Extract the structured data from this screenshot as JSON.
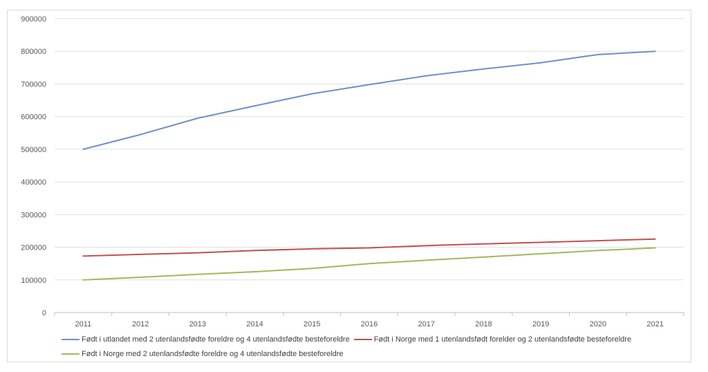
{
  "chart_data": {
    "type": "line",
    "title": "",
    "xlabel": "",
    "ylabel": "",
    "x": [
      "2011",
      "2012",
      "2013",
      "2014",
      "2015",
      "2016",
      "2017",
      "2018",
      "2019",
      "2020",
      "2021"
    ],
    "ylim": [
      0,
      900000
    ],
    "yticks": [
      "0",
      "100000",
      "200000",
      "300000",
      "400000",
      "500000",
      "600000",
      "700000",
      "800000",
      "900000"
    ],
    "grid": true,
    "legend_position": "bottom",
    "series": [
      {
        "name": "Født i utlandet med 2 utenlandsfødte foreldre og 4 utenlandsfødte besteforeldre",
        "color": "#6f8fc6",
        "values": [
          500000,
          545000,
          595000,
          633000,
          670000,
          698000,
          725000,
          746000,
          765000,
          790000,
          800000
        ]
      },
      {
        "name": "Født i Norge med 1 utenlandsfødt forelder og 2 utenlandsfødte besteforeldre",
        "color": "#c0504d",
        "values": [
          173000,
          178000,
          183000,
          190000,
          195000,
          198000,
          205000,
          210000,
          215000,
          220000,
          225000
        ]
      },
      {
        "name": "Født i Norge med 2 utenlandsfødte foreldre og 4 utenlandsfødte besteforeldre",
        "color": "#9bbb59",
        "values": [
          100000,
          108000,
          117000,
          125000,
          135000,
          150000,
          160000,
          170000,
          180000,
          190000,
          198000
        ]
      }
    ]
  }
}
